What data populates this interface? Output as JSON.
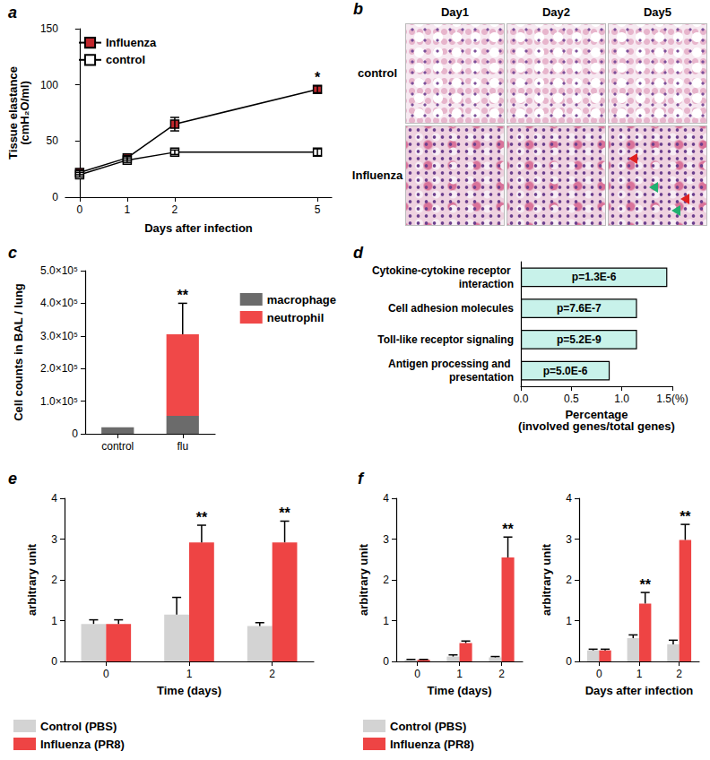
{
  "chart_data": [
    {
      "type": "line",
      "title": "a",
      "x_label": "Days after infection",
      "y_label": "Tissue elastance\n(cmH₂O/ml)",
      "x": [
        0,
        1,
        2,
        5
      ],
      "xlim": [
        -0.3,
        5.3
      ],
      "xticks": [
        0,
        1,
        2,
        5
      ],
      "ylim": [
        0,
        150
      ],
      "yticks": [
        0,
        50,
        100,
        150
      ],
      "grid": false,
      "legend": "top-left",
      "series": [
        {
          "name": "Influenza",
          "color": "#c1272d",
          "marker": "square",
          "values": [
            22,
            35,
            65,
            96
          ],
          "errors": [
            2,
            2,
            6,
            3
          ],
          "annotations": [
            null,
            null,
            null,
            "*"
          ]
        },
        {
          "name": "control",
          "color": "#ffffff",
          "marker": "square",
          "values": [
            20,
            33,
            40,
            40
          ],
          "errors": [
            2,
            2,
            2,
            3
          ],
          "annotations": [
            null,
            null,
            null,
            null
          ]
        }
      ]
    },
    {
      "type": "image_grid",
      "title": "b",
      "columns": [
        "Day1",
        "Day2",
        "Day5"
      ],
      "rows": [
        "control",
        "Influenza"
      ]
    },
    {
      "type": "bar",
      "title": "c",
      "y_label": "Cell counts in BAL / lung",
      "categories": [
        "control",
        "flu"
      ],
      "stacked": true,
      "ylim": [
        0,
        500000
      ],
      "yticks": [
        0,
        {
          "value": 100000,
          "label": "1.0×10⁵"
        },
        {
          "value": 200000,
          "label": "2.0×10⁵"
        },
        {
          "value": 300000,
          "label": "3.0×10⁵"
        },
        {
          "value": 400000,
          "label": "4.0×10⁵"
        },
        {
          "value": 500000,
          "label": "5.0×10⁵"
        }
      ],
      "grid": false,
      "legend": "top-right",
      "series": [
        {
          "name": "macrophage",
          "color": "#6b6b6b",
          "values": [
            20000,
            55000
          ],
          "errors": [
            null,
            null
          ],
          "annotations": [
            null,
            null
          ]
        },
        {
          "name": "neutrophil",
          "color": "#f04848",
          "values": [
            0,
            250000
          ],
          "errors": [
            null,
            95000
          ],
          "annotations": [
            null,
            "**"
          ]
        }
      ]
    },
    {
      "type": "bar",
      "title": "d",
      "orientation": "horizontal",
      "x_label": "Percentage\n(involved genes/total genes)",
      "categories": [
        "Cytokine-cytokine receptor interaction",
        "Cell adhesion molecules",
        "Toll-like receptor signaling",
        "Antigen processing and presentation"
      ],
      "values": [
        1.45,
        1.15,
        1.15,
        0.88
      ],
      "annotations": [
        "p=1.3E-6",
        "p=7.6E-7",
        "p=5.2E-9",
        "p=5.0E-6"
      ],
      "color": "#c8f2ea",
      "xlim": [
        0,
        1.5
      ],
      "xticks": [
        {
          "value": 0,
          "label": "0.0"
        },
        0.5,
        {
          "value": 1,
          "label": "1.0"
        },
        {
          "value": 1.5,
          "label": "1.5(%)"
        }
      ],
      "grid": false
    },
    {
      "type": "bar",
      "title": "e",
      "x_label": "Time (days)",
      "y_label": "arbitrary unit",
      "categories": [
        "0",
        "1",
        "2"
      ],
      "ylim": [
        0,
        4
      ],
      "yticks": [
        0,
        1,
        2,
        3,
        4
      ],
      "grid": false,
      "legend": "bottom-left",
      "series": [
        {
          "name": "Control (PBS)",
          "color": "#d3d3d3",
          "values": [
            0.92,
            1.15,
            0.87
          ],
          "errors": [
            0.1,
            0.42,
            0.08
          ],
          "annotations": [
            null,
            null,
            null
          ]
        },
        {
          "name": "Influenza (PR8)",
          "color": "#ee4444",
          "values": [
            0.92,
            2.92,
            2.92
          ],
          "errors": [
            0.1,
            0.42,
            0.52
          ],
          "annotations": [
            null,
            "**",
            "**"
          ]
        }
      ]
    },
    {
      "type": "bar",
      "title": "f",
      "x_label": "Time (days)",
      "y_label": "arbitrary unit",
      "categories": [
        "0",
        "1",
        "2"
      ],
      "ylim": [
        0,
        4
      ],
      "yticks": [
        0,
        1,
        2,
        3,
        4
      ],
      "grid": false,
      "legend": "bottom-left",
      "series": [
        {
          "name": "Control (PBS)",
          "color": "#d3d3d3",
          "values": [
            0.04,
            0.12,
            0.1
          ],
          "errors": [
            0.01,
            0.04,
            0.02
          ],
          "annotations": [
            null,
            null,
            null
          ]
        },
        {
          "name": "Influenza (PR8)",
          "color": "#ee4444",
          "values": [
            0.04,
            0.45,
            2.55
          ],
          "errors": [
            0.01,
            0.05,
            0.5
          ],
          "annotations": [
            null,
            null,
            "**"
          ]
        }
      ]
    },
    {
      "type": "bar",
      "x_label": "Days after infection",
      "y_label": "arbitrary unit",
      "categories": [
        "0",
        "1",
        "2"
      ],
      "ylim": [
        0,
        4
      ],
      "yticks": [
        0,
        1,
        2,
        3,
        4
      ],
      "grid": false,
      "series": [
        {
          "name": "Control (PBS)",
          "color": "#d3d3d3",
          "values": [
            0.27,
            0.57,
            0.42
          ],
          "errors": [
            0.03,
            0.08,
            0.1
          ],
          "annotations": [
            null,
            null,
            null
          ]
        },
        {
          "name": "Influenza (PR8)",
          "color": "#ee4444",
          "values": [
            0.27,
            1.42,
            2.98
          ],
          "errors": [
            0.03,
            0.27,
            0.38
          ],
          "annotations": [
            null,
            "**",
            "**"
          ]
        }
      ]
    }
  ]
}
